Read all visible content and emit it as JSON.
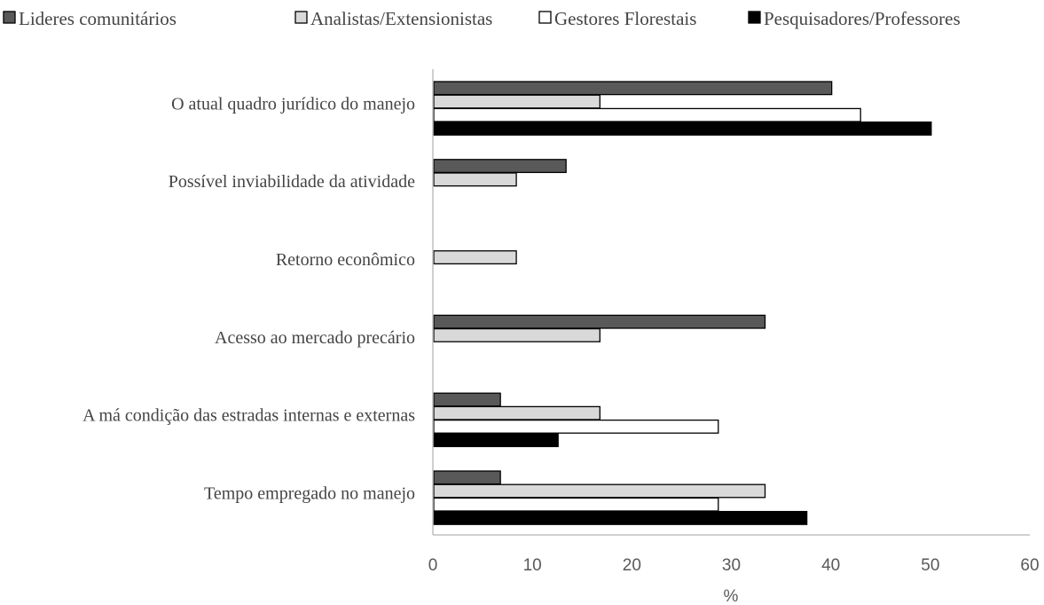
{
  "chart_data": {
    "type": "bar",
    "orientation": "horizontal",
    "title": "",
    "xlabel": "%",
    "ylabel": "",
    "xlim": [
      0,
      60
    ],
    "x_ticks": [
      "0",
      "10",
      "20",
      "30",
      "40",
      "50",
      "60"
    ],
    "grid": false,
    "legend_position": "top",
    "categories": [
      "O atual quadro jurídico do manejo",
      "Possível inviabilidade da atividade",
      "Retorno econômico",
      "Acesso ao mercado precário",
      "A má condição das estradas internas e externas",
      "Tempo empregado no manejo"
    ],
    "series": [
      {
        "name": "Lideres comunitários",
        "color": "#595959",
        "values": [
          40,
          13.3,
          0,
          33.3,
          6.7,
          6.7
        ]
      },
      {
        "name": "Analistas/Extensionistas",
        "color": "#d9d9d9",
        "values": [
          16.7,
          8.3,
          8.3,
          16.7,
          16.7,
          33.3
        ]
      },
      {
        "name": "Gestores Florestais",
        "color": "#ffffff",
        "values": [
          42.9,
          0,
          0,
          0,
          28.6,
          28.6
        ]
      },
      {
        "name": "Pesquisadores/Professores",
        "color": "#000000",
        "values": [
          50,
          0,
          0,
          0,
          12.5,
          37.5
        ]
      }
    ]
  }
}
